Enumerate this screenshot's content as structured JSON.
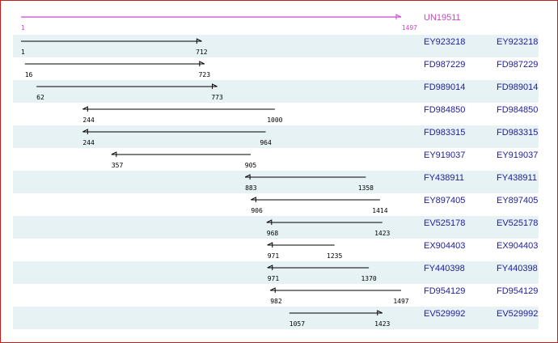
{
  "reference": {
    "name": "UN19511",
    "start": 1,
    "end": 1497,
    "color": "#cc44cc"
  },
  "colors": {
    "border": "#c41d1d",
    "band": "#e6f2f4",
    "link": "#1d1d9c",
    "line": "#000000"
  },
  "rows": [
    {
      "id": "EY923218",
      "link_label": "EY923218",
      "start": 1,
      "end": 712,
      "direction": "right"
    },
    {
      "id": "FD987229",
      "link_label": "FD987229",
      "start": 16,
      "end": 723,
      "direction": "right"
    },
    {
      "id": "FD989014",
      "link_label": "FD989014",
      "start": 62,
      "end": 773,
      "direction": "right"
    },
    {
      "id": "FD984850",
      "link_label": "FD984850",
      "start": 244,
      "end": 1000,
      "direction": "left"
    },
    {
      "id": "FD983315",
      "link_label": "FD983315",
      "start": 244,
      "end": 964,
      "direction": "left"
    },
    {
      "id": "EY919037",
      "link_label": "EY919037",
      "start": 357,
      "end": 905,
      "direction": "left"
    },
    {
      "id": "FY438911",
      "link_label": "FY438911",
      "start": 883,
      "end": 1358,
      "direction": "left"
    },
    {
      "id": "EY897405",
      "link_label": "EY897405",
      "start": 906,
      "end": 1414,
      "direction": "left"
    },
    {
      "id": "EV525178",
      "link_label": "EV525178",
      "start": 968,
      "end": 1423,
      "direction": "left"
    },
    {
      "id": "EX904403",
      "link_label": "EX904403",
      "start": 971,
      "end": 1235,
      "direction": "left"
    },
    {
      "id": "FY440398",
      "link_label": "FY440398",
      "start": 971,
      "end": 1370,
      "direction": "left"
    },
    {
      "id": "FD954129",
      "link_label": "FD954129",
      "start": 982,
      "end": 1497,
      "direction": "left"
    },
    {
      "id": "EV529992",
      "link_label": "EV529992",
      "start": 1057,
      "end": 1423,
      "direction": "right"
    }
  ]
}
